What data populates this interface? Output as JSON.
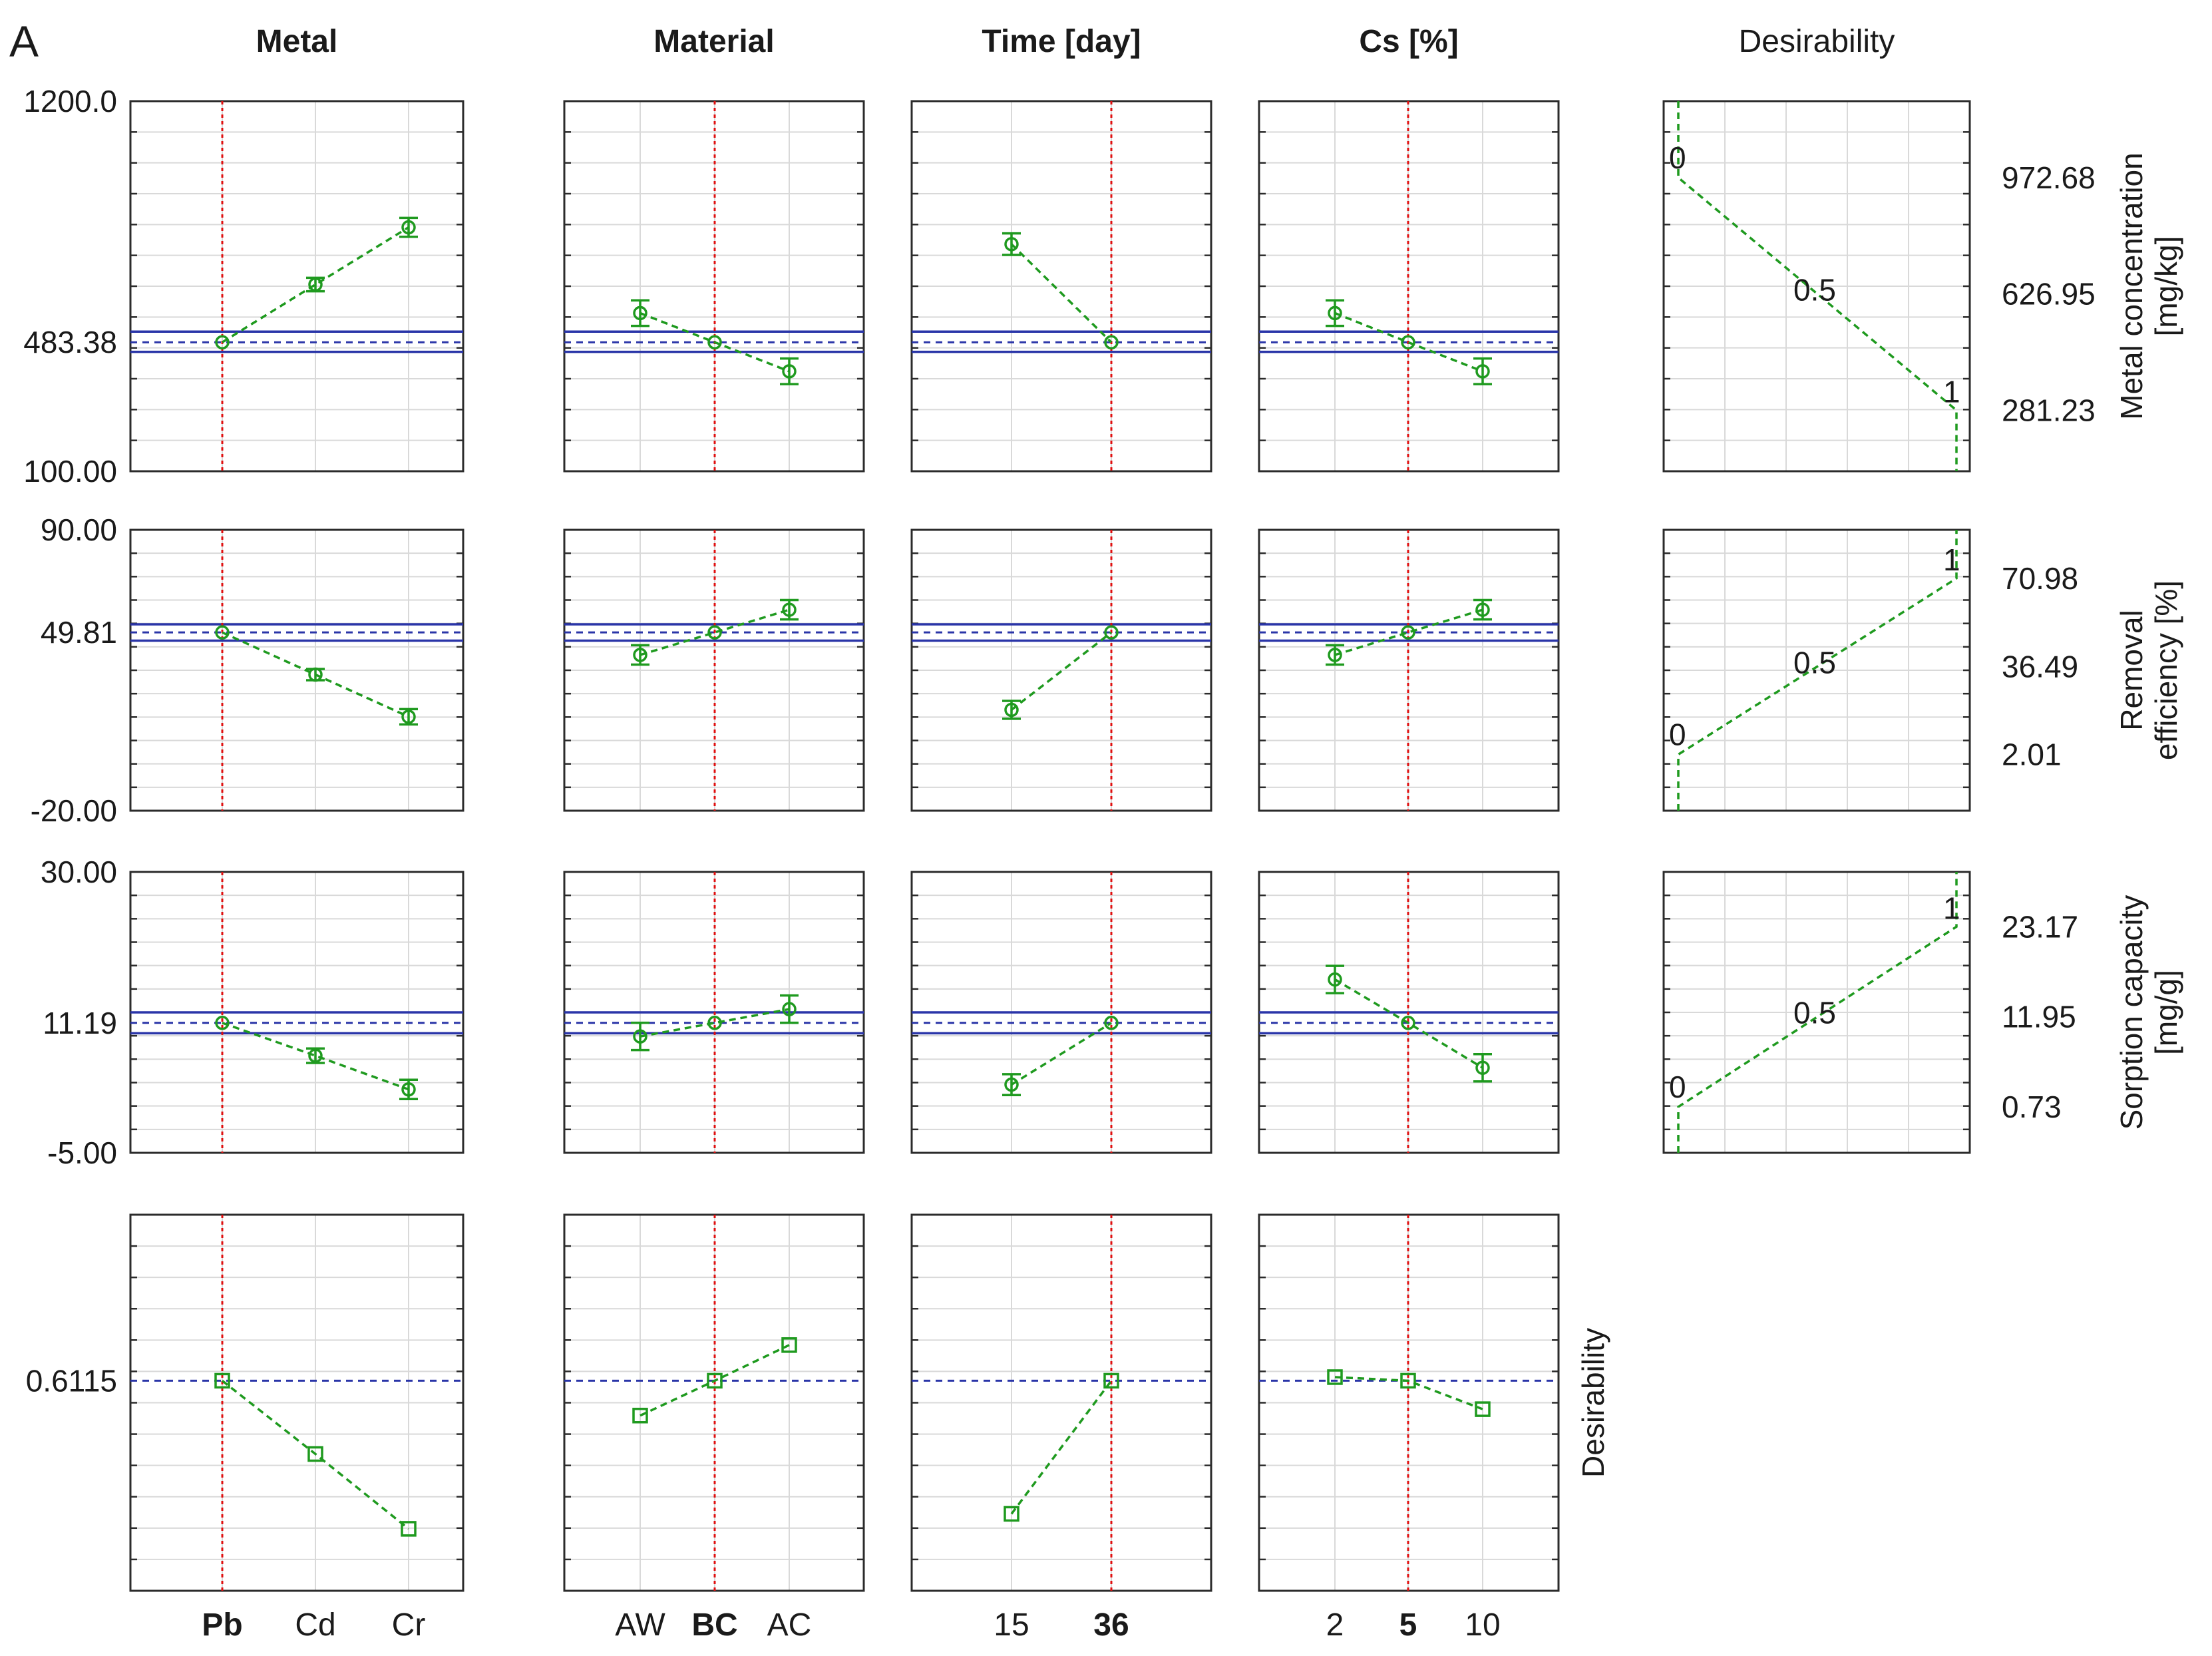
{
  "panel_letter": "A",
  "factors": [
    {
      "name": "Metal",
      "bold": true,
      "levels": [
        "Pb",
        "Cd",
        "Cr"
      ],
      "current": "Pb"
    },
    {
      "name": "Material",
      "bold": true,
      "levels": [
        "AW",
        "BC",
        "AC"
      ],
      "current": "BC"
    },
    {
      "name": "Time [day]",
      "bold": true,
      "levels": [
        "15",
        "36"
      ],
      "current": "36"
    },
    {
      "name": "Cs [%]",
      "bold": true,
      "levels": [
        "2",
        "5",
        "10"
      ],
      "current": "5"
    }
  ],
  "desirability_header": "Desirability",
  "chart_data": [
    {
      "type": "line",
      "title": "Metal concentration [mg/kg]",
      "ylabel_lines": [
        "Metal concentration",
        "[mg/kg]"
      ],
      "ylim": [
        100.0,
        1200.0
      ],
      "ytick_labels": [
        "1200.0",
        "483.38",
        "100.00"
      ],
      "ytick_values": [
        1200.0,
        483.38,
        100.0
      ],
      "predicted": 483.38,
      "ci": [
        455,
        515
      ],
      "series": [
        {
          "factor": "Metal",
          "x": [
            "Pb",
            "Cd",
            "Cr"
          ],
          "values": [
            483.38,
            655,
            825
          ],
          "err": [
            0,
            20,
            28
          ]
        },
        {
          "factor": "Material",
          "x": [
            "AW",
            "BC",
            "AC"
          ],
          "values": [
            570,
            483.38,
            397
          ],
          "err": [
            38,
            0,
            38
          ]
        },
        {
          "factor": "Time [day]",
          "x": [
            "15",
            "36"
          ],
          "values": [
            775,
            483.38
          ],
          "err": [
            32,
            0
          ]
        },
        {
          "factor": "Cs [%]",
          "x": [
            "2",
            "5",
            "10"
          ],
          "values": [
            570,
            483.38,
            397
          ],
          "err": [
            38,
            0,
            38
          ]
        }
      ],
      "desirability_profile": {
        "yticks": [
          972.68,
          626.95,
          281.23
        ],
        "ytick_labels": [
          "972.68",
          "626.95",
          "281.23"
        ],
        "points": [
          [
            0,
            1200
          ],
          [
            0,
            972.68
          ],
          [
            1,
            281.23
          ],
          [
            1,
            100
          ]
        ],
        "labels": [
          "0",
          "0.5",
          "1"
        ]
      }
    },
    {
      "type": "line",
      "title": "Removal efficiency [%]",
      "ylabel_lines": [
        "Removal",
        "efficiency [%]"
      ],
      "ylim": [
        -20.0,
        90.0
      ],
      "ytick_labels": [
        "90.00",
        "49.81",
        "-20.00"
      ],
      "ytick_values": [
        90.0,
        49.81,
        -20.0
      ],
      "predicted": 49.81,
      "ci": [
        46.6,
        53.0
      ],
      "series": [
        {
          "factor": "Metal",
          "x": [
            "Pb",
            "Cd",
            "Cr"
          ],
          "values": [
            49.81,
            33.3,
            16.8
          ],
          "err": [
            0,
            2.2,
            3.0
          ]
        },
        {
          "factor": "Material",
          "x": [
            "AW",
            "BC",
            "AC"
          ],
          "values": [
            41.0,
            49.81,
            58.7
          ],
          "err": [
            3.8,
            0,
            3.8
          ]
        },
        {
          "factor": "Time [day]",
          "x": [
            "15",
            "36"
          ],
          "values": [
            19.5,
            49.81
          ],
          "err": [
            3.5,
            0
          ]
        },
        {
          "factor": "Cs [%]",
          "x": [
            "2",
            "5",
            "10"
          ],
          "values": [
            41.0,
            49.81,
            58.7
          ],
          "err": [
            3.8,
            0,
            3.8
          ]
        }
      ],
      "desirability_profile": {
        "yticks": [
          70.98,
          36.49,
          2.01
        ],
        "ytick_labels": [
          "70.98",
          "36.49",
          "2.01"
        ],
        "points": [
          [
            0,
            -20
          ],
          [
            0,
            2.01
          ],
          [
            1,
            70.98
          ],
          [
            1,
            90
          ]
        ],
        "labels": [
          "0",
          "0.5",
          "1"
        ]
      }
    },
    {
      "type": "line",
      "title": "Sorption capacity [mg/g]",
      "ylabel_lines": [
        "Sorption capacity",
        "[mg/g]"
      ],
      "ylim": [
        -5.0,
        30.0
      ],
      "ytick_labels": [
        "30.00",
        "11.19",
        "-5.00"
      ],
      "ytick_values": [
        30.0,
        11.19,
        -5.0
      ],
      "predicted": 11.19,
      "ci": [
        9.9,
        12.5
      ],
      "series": [
        {
          "factor": "Metal",
          "x": [
            "Pb",
            "Cd",
            "Cr"
          ],
          "values": [
            11.19,
            7.1,
            2.9
          ],
          "err": [
            0,
            0.9,
            1.2
          ]
        },
        {
          "factor": "Material",
          "x": [
            "AW",
            "BC",
            "AC"
          ],
          "values": [
            9.5,
            11.19,
            12.9
          ],
          "err": [
            1.7,
            0,
            1.7
          ]
        },
        {
          "factor": "Time [day]",
          "x": [
            "15",
            "36"
          ],
          "values": [
            3.5,
            11.19
          ],
          "err": [
            1.3,
            0
          ]
        },
        {
          "factor": "Cs [%]",
          "x": [
            "2",
            "5",
            "10"
          ],
          "values": [
            16.6,
            11.19,
            5.6
          ],
          "err": [
            1.7,
            0,
            1.7
          ]
        }
      ],
      "desirability_profile": {
        "yticks": [
          23.17,
          11.95,
          0.73
        ],
        "ytick_labels": [
          "23.17",
          "11.95",
          "0.73"
        ],
        "points": [
          [
            0,
            -5
          ],
          [
            0,
            0.73
          ],
          [
            1,
            23.17
          ],
          [
            1,
            30
          ]
        ],
        "labels": [
          "0",
          "0.5",
          "1"
        ]
      }
    },
    {
      "type": "line",
      "title": "Desirability",
      "ylabel_lines": [
        "Desirability"
      ],
      "ylim": [
        0.12,
        1.0
      ],
      "ytick_labels": [
        "0.6115"
      ],
      "ytick_values": [
        0.6115
      ],
      "predicted": 0.6115,
      "ci": null,
      "series": [
        {
          "factor": "Metal",
          "x": [
            "Pb",
            "Cd",
            "Cr"
          ],
          "values": [
            0.6115,
            0.44,
            0.265
          ],
          "err": [
            0,
            0,
            0
          ]
        },
        {
          "factor": "Material",
          "x": [
            "AW",
            "BC",
            "AC"
          ],
          "values": [
            0.53,
            0.6115,
            0.695
          ],
          "err": [
            0,
            0,
            0
          ]
        },
        {
          "factor": "Time [day]",
          "x": [
            "15",
            "36"
          ],
          "values": [
            0.3,
            0.6115
          ],
          "err": [
            0,
            0
          ]
        },
        {
          "factor": "Cs [%]",
          "x": [
            "2",
            "5",
            "10"
          ],
          "values": [
            0.62,
            0.6115,
            0.545
          ],
          "err": [
            0,
            0,
            0
          ]
        }
      ]
    }
  ]
}
